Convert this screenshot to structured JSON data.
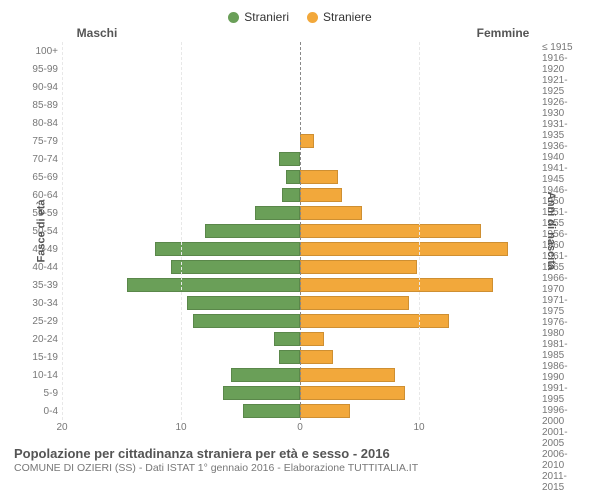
{
  "legend": {
    "male": "Stranieri",
    "female": "Straniere"
  },
  "colors": {
    "male": "#6a9f58",
    "female": "#f2a83b",
    "grid": "#e8e8e8",
    "center": "#888888",
    "bg": "#ffffff"
  },
  "headers": {
    "left": "Maschi",
    "right": "Femmine"
  },
  "axis_labels": {
    "left": "Fasce di età",
    "right": "Anni di nascita"
  },
  "title": "Popolazione per cittadinanza straniera per età e sesso - 2016",
  "subtitle": "COMUNE DI OZIERI (SS) - Dati ISTAT 1° gennaio 2016 - Elaborazione TUTTITALIA.IT",
  "chart": {
    "type": "population-pyramid",
    "x_max": 20,
    "x_ticks": [
      20,
      10,
      0,
      10
    ],
    "age_groups": [
      "100+",
      "95-99",
      "90-94",
      "85-89",
      "80-84",
      "75-79",
      "70-74",
      "65-69",
      "60-64",
      "55-59",
      "50-54",
      "45-49",
      "40-44",
      "35-39",
      "30-34",
      "25-29",
      "20-24",
      "15-19",
      "10-14",
      "5-9",
      "0-4"
    ],
    "birth_years": [
      "≤ 1915",
      "1916-1920",
      "1921-1925",
      "1926-1930",
      "1931-1935",
      "1936-1940",
      "1941-1945",
      "1946-1950",
      "1951-1955",
      "1956-1960",
      "1961-1965",
      "1966-1970",
      "1971-1975",
      "1976-1980",
      "1981-1985",
      "1986-1990",
      "1991-1995",
      "1996-2000",
      "2001-2005",
      "2006-2010",
      "2011-2015"
    ],
    "male": [
      0,
      0,
      0,
      0,
      0,
      0,
      1.8,
      1.2,
      1.5,
      3.8,
      8.0,
      12.2,
      10.8,
      14.5,
      9.5,
      9.0,
      2.2,
      1.8,
      5.8,
      6.5,
      4.8
    ],
    "female": [
      0,
      0,
      0,
      0,
      0,
      1.2,
      0,
      3.2,
      3.5,
      5.2,
      15.2,
      17.5,
      9.8,
      16.2,
      9.2,
      12.5,
      2.0,
      2.8,
      8.0,
      8.8,
      4.2
    ]
  }
}
